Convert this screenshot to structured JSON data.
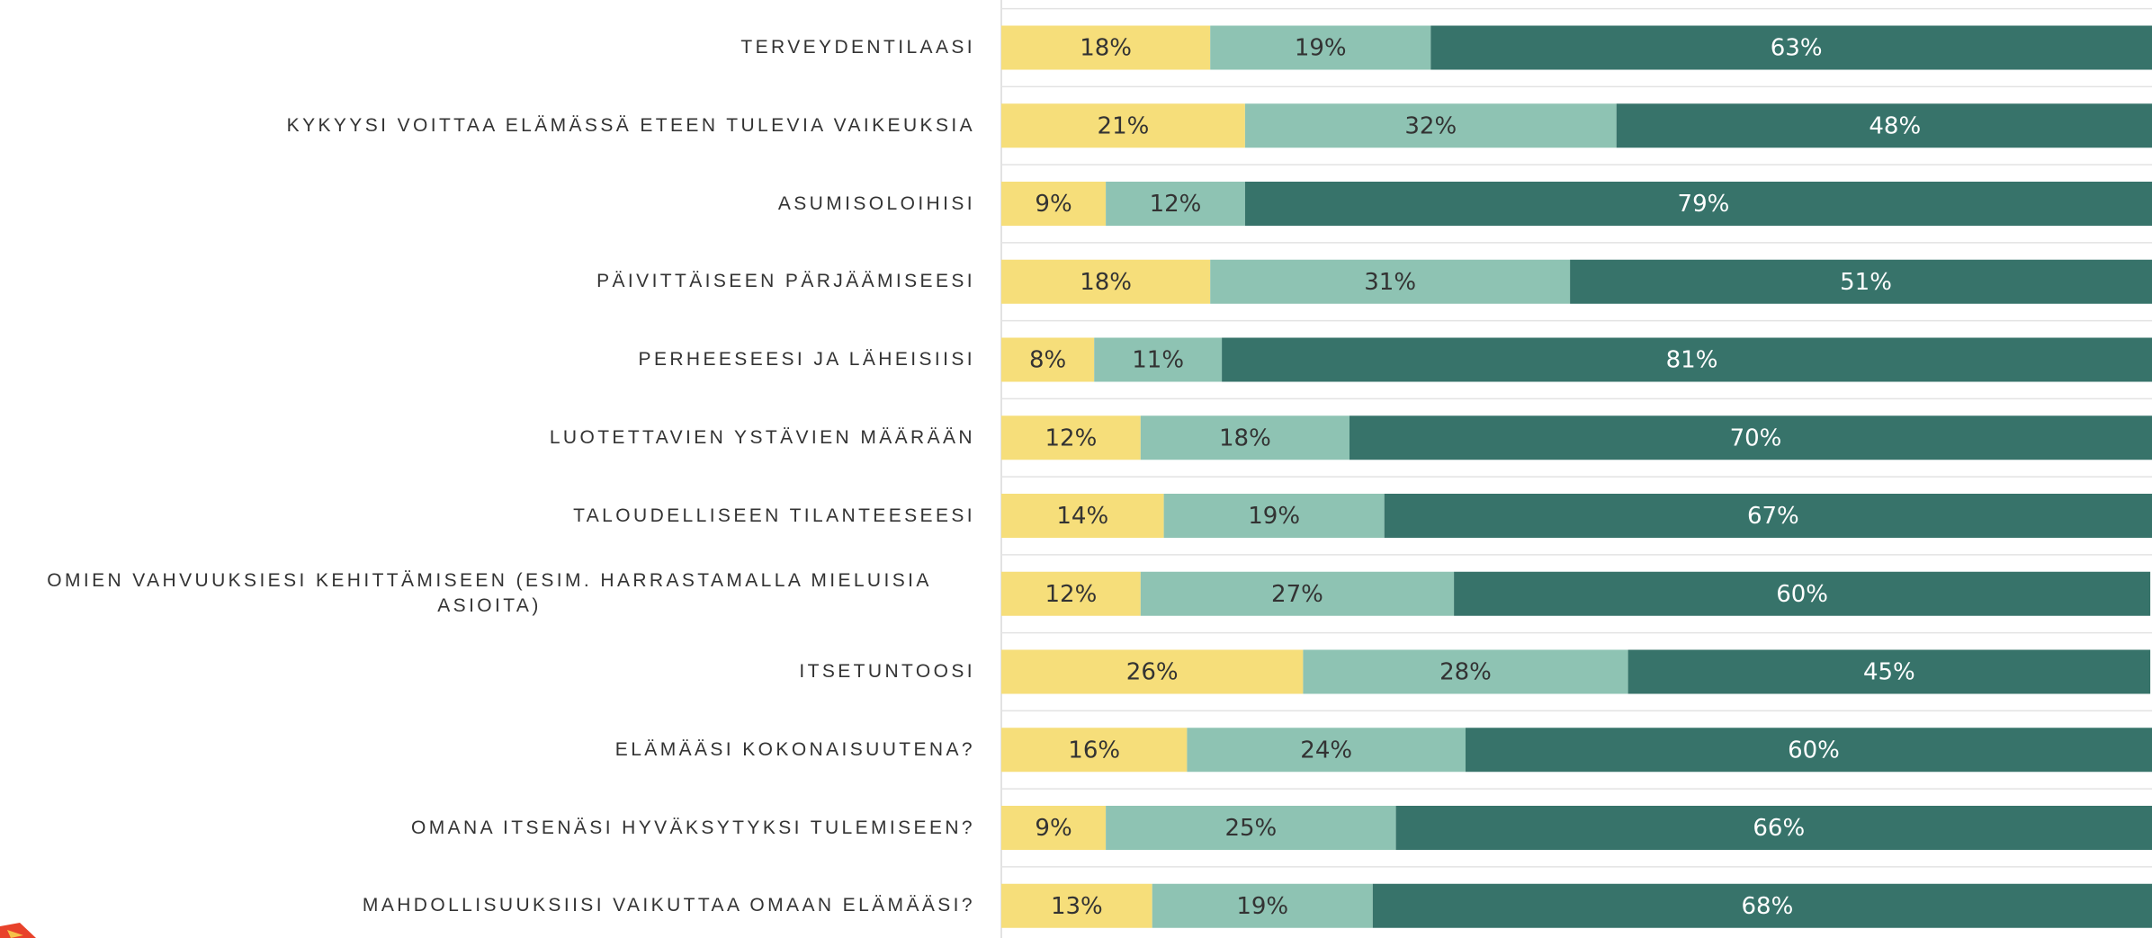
{
  "chart_data": {
    "type": "stacked_barh",
    "categories": [
      "TERVEYDENTILAASI",
      "KYKYYSI VOITTAA ELÄMÄSSÄ ETEEN TULEVIA VAIKEUKSIA",
      "ASUMISOLOIHISI",
      "PÄIVITTÄISEEN PÄRJÄÄMISEESI",
      "PERHEESEESI JA LÄHEISIISI",
      "LUOTETTAVIEN YSTÄVIEN MÄÄRÄÄN",
      "TALOUDELLISEEN TILANTEESEESI",
      "OMIEN VAHVUUKSIESI KEHITTÄMISEEN (ESIM. HARRASTAMALLA MIELUISIA ASIOITA)",
      "ITSETUNTOOSI",
      "ELÄMÄÄSI KOKONAISUUTENA?",
      "OMANA ITSENÄSI HYVÄKSYTYKSI TULEMISEEN?",
      "MAHDOLLISUUKSIISI VAIKUTTAA OMAAN ELÄMÄÄSI?"
    ],
    "series": [
      {
        "color": "#f6de7a",
        "values": [
          18,
          21,
          9,
          18,
          8,
          12,
          14,
          12,
          26,
          16,
          9,
          13
        ],
        "value_labels": [
          "18%",
          "21%",
          "9%",
          "18%",
          "8%",
          "12%",
          "14%",
          "12%",
          "26%",
          "16%",
          "9%",
          "13%"
        ]
      },
      {
        "color": "#8ec3b3",
        "values": [
          19,
          32,
          12,
          31,
          11,
          18,
          19,
          27,
          28,
          24,
          25,
          19
        ],
        "value_labels": [
          "19%",
          "32%",
          "12%",
          "31%",
          "11%",
          "18%",
          "19%",
          "27%",
          "28%",
          "24%",
          "25%",
          "19%"
        ]
      },
      {
        "color": "#37736a",
        "values": [
          63,
          48,
          79,
          51,
          81,
          70,
          67,
          60,
          45,
          60,
          66,
          68
        ],
        "value_labels": [
          "63%",
          "48%",
          "79%",
          "51%",
          "81%",
          "70%",
          "67%",
          "60%",
          "45%",
          "60%",
          "66%",
          "68%"
        ]
      }
    ]
  }
}
